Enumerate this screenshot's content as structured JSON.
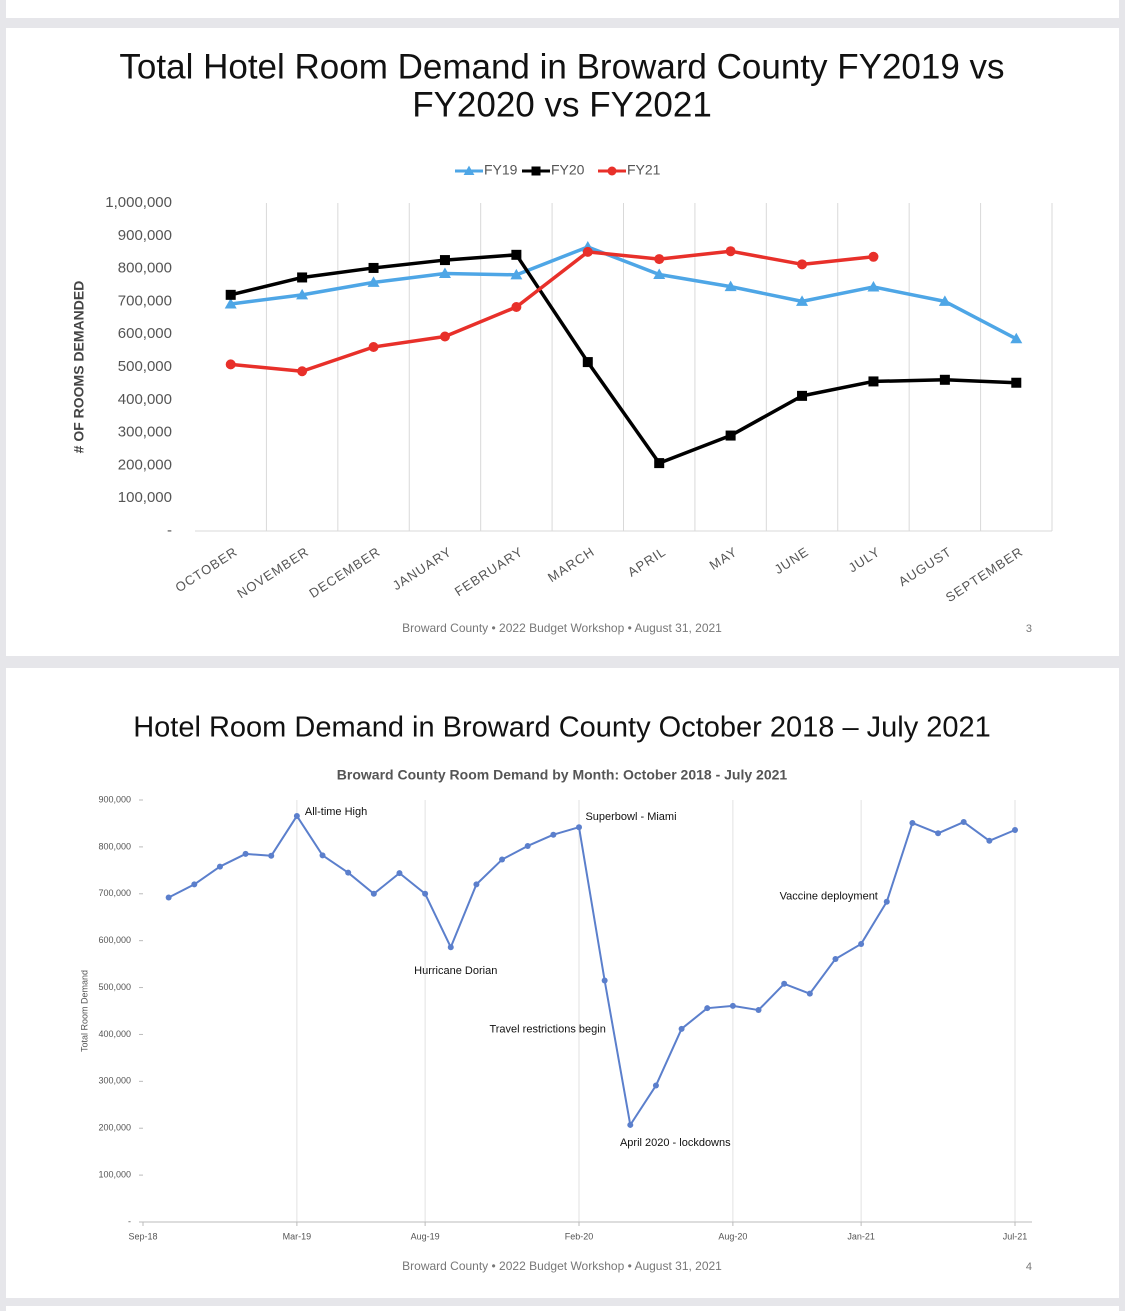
{
  "chart_data": [
    {
      "type": "line",
      "slide_title": [
        "Total Hotel Room Demand in Broward County  FY2019 vs",
        "FY2020 vs FY2021"
      ],
      "y_label": "# OF ROOMS DEMANDED",
      "categories": [
        "OCTOBER",
        "NOVEMBER",
        "DECEMBER",
        "JANUARY",
        "FEBRUARY",
        "MARCH",
        "APRIL",
        "MAY",
        "JUNE",
        "JULY",
        "AUGUST",
        "SEPTEMBER"
      ],
      "series": [
        {
          "name": "FY19",
          "color": "#4ea6e6",
          "marker": "triangle",
          "values": [
            692000,
            720000,
            758000,
            785000,
            781000,
            866000,
            782000,
            745000,
            700000,
            744000,
            700000,
            586000
          ]
        },
        {
          "name": "FY20",
          "color": "#000000",
          "marker": "square",
          "values": [
            720000,
            773000,
            802000,
            826000,
            842000,
            515000,
            207000,
            291000,
            412000,
            456000,
            461000,
            452000
          ]
        },
        {
          "name": "FY21",
          "color": "#e8302a",
          "marker": "circle",
          "values": [
            508000,
            487000,
            561000,
            593000,
            683000,
            851000,
            829000,
            853000,
            813000,
            836000,
            null,
            null
          ]
        }
      ],
      "ylim": [
        0,
        1000000
      ],
      "yticks": [
        {
          "value": 0,
          "label": "-"
        },
        {
          "value": 100000,
          "label": "100,000"
        },
        {
          "value": 200000,
          "label": "200,000"
        },
        {
          "value": 300000,
          "label": "300,000"
        },
        {
          "value": 400000,
          "label": "400,000"
        },
        {
          "value": 500000,
          "label": "500,000"
        },
        {
          "value": 600000,
          "label": "600,000"
        },
        {
          "value": 700000,
          "label": "700,000"
        },
        {
          "value": 800000,
          "label": "800,000"
        },
        {
          "value": 900000,
          "label": "900,000"
        },
        {
          "value": 1000000,
          "label": "1,000,000"
        }
      ],
      "legend": "top",
      "grid": "x",
      "footer": "Broward County • 2022 Budget Workshop • August 31, 2021",
      "page": "3"
    },
    {
      "type": "line",
      "slide_title": [
        "Hotel Room Demand in Broward County  October 2018 – July 2021"
      ],
      "title": "Broward County Room Demand by Month: October 2018 - July 2021",
      "y_label": "Total Room Demand",
      "x": [
        "2018-10",
        "2018-11",
        "2018-12",
        "2019-01",
        "2019-02",
        "2019-03",
        "2019-04",
        "2019-05",
        "2019-06",
        "2019-07",
        "2019-08",
        "2019-09",
        "2019-10",
        "2019-11",
        "2019-12",
        "2020-01",
        "2020-02",
        "2020-03",
        "2020-04",
        "2020-05",
        "2020-06",
        "2020-07",
        "2020-08",
        "2020-09",
        "2020-10",
        "2020-11",
        "2020-12",
        "2021-01",
        "2021-02",
        "2021-03",
        "2021-04",
        "2021-05",
        "2021-06",
        "2021-07"
      ],
      "series": [
        {
          "name": "Room Demand",
          "color": "#5b7fcc",
          "values": [
            692000,
            720000,
            758000,
            785000,
            781000,
            866000,
            782000,
            745000,
            700000,
            744000,
            700000,
            586000,
            720000,
            773000,
            802000,
            826000,
            842000,
            515000,
            207000,
            291000,
            412000,
            456000,
            461000,
            452000,
            508000,
            487000,
            561000,
            593000,
            683000,
            851000,
            829000,
            853000,
            813000,
            836000
          ]
        }
      ],
      "xlim": [
        "2018-09",
        "2021-07"
      ],
      "xticks": [
        {
          "value": "2018-09",
          "label": "Sep-18"
        },
        {
          "value": "2019-03",
          "label": "Mar-19"
        },
        {
          "value": "2019-08",
          "label": "Aug-19"
        },
        {
          "value": "2020-02",
          "label": "Feb-20"
        },
        {
          "value": "2020-08",
          "label": "Aug-20"
        },
        {
          "value": "2021-01",
          "label": "Jan-21"
        },
        {
          "value": "2021-07",
          "label": "Jul-21"
        }
      ],
      "ylim": [
        0,
        900000
      ],
      "yticks": [
        {
          "value": 0,
          "label": "-"
        },
        {
          "value": 100000,
          "label": "100,000"
        },
        {
          "value": 200000,
          "label": "200,000"
        },
        {
          "value": 300000,
          "label": "300,000"
        },
        {
          "value": 400000,
          "label": "400,000"
        },
        {
          "value": 500000,
          "label": "500,000"
        },
        {
          "value": 600000,
          "label": "600,000"
        },
        {
          "value": 700000,
          "label": "700,000"
        },
        {
          "value": 800000,
          "label": "800,000"
        },
        {
          "value": 900000,
          "label": "900,000"
        }
      ],
      "grid": "x",
      "annotations": [
        {
          "text": "All-time High",
          "x": "2019-03"
        },
        {
          "text": "Hurricane Dorian",
          "x": "2019-09"
        },
        {
          "text": "Superbowl - Miami",
          "x": "2020-02"
        },
        {
          "text": "Travel restrictions begin",
          "x": "2020-03"
        },
        {
          "text": "April 2020 - lockdowns",
          "x": "2020-04"
        },
        {
          "text": "Vaccine deployment",
          "x": "2021-02"
        }
      ],
      "footer": "Broward County • 2022 Budget Workshop • August 31, 2021",
      "page": "4"
    }
  ]
}
